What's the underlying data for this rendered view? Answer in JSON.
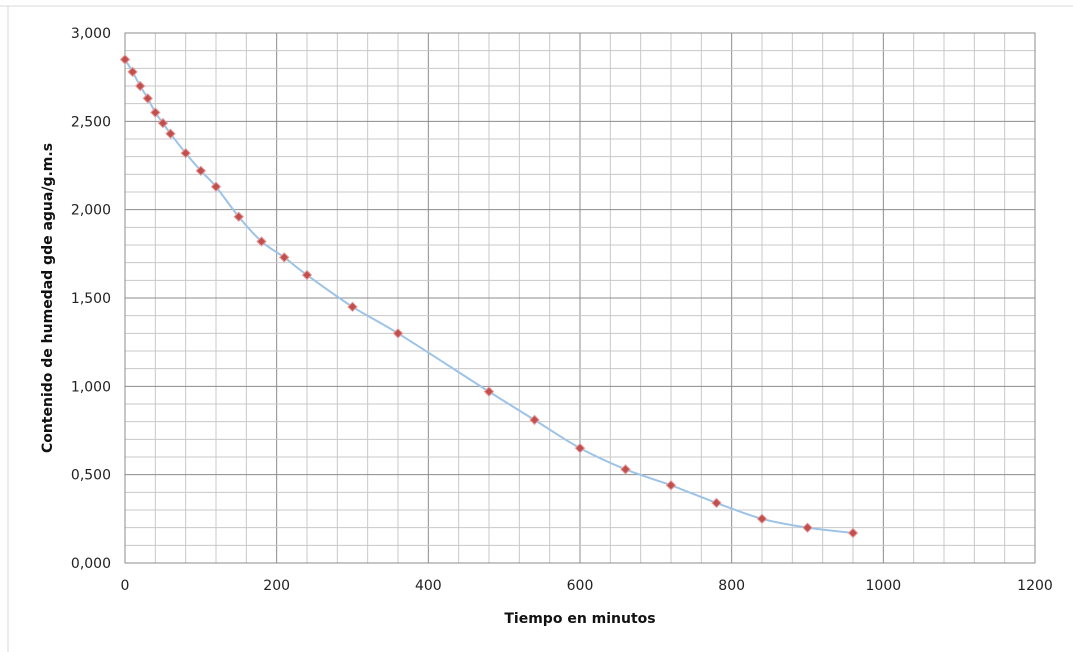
{
  "chart_data": {
    "type": "scatter",
    "title": "",
    "xlabel": "Tiempo en minutos",
    "ylabel": "Contenido de humedad gde agua/g.m.s",
    "xlim": [
      0,
      1200
    ],
    "ylim": [
      0,
      3
    ],
    "x_ticks": [
      0,
      200,
      400,
      600,
      800,
      1000,
      1200
    ],
    "x_tick_labels": [
      "0",
      "200",
      "400",
      "600",
      "800",
      "1000",
      "1200"
    ],
    "y_ticks": [
      0,
      0.5,
      1,
      1.5,
      2,
      2.5,
      3
    ],
    "y_tick_labels": [
      "0,000",
      "0,500",
      "1,000",
      "1,500",
      "2,000",
      "2,500",
      "3,000"
    ],
    "grid": true,
    "series": [
      {
        "style": "smooth line with diamond markers",
        "line_color": "#9dc3e6",
        "marker_color": "#c0504d",
        "points": [
          {
            "x": 0,
            "y": 2.85
          },
          {
            "x": 10,
            "y": 2.78
          },
          {
            "x": 20,
            "y": 2.7
          },
          {
            "x": 30,
            "y": 2.63
          },
          {
            "x": 40,
            "y": 2.55
          },
          {
            "x": 50,
            "y": 2.49
          },
          {
            "x": 60,
            "y": 2.43
          },
          {
            "x": 80,
            "y": 2.32
          },
          {
            "x": 100,
            "y": 2.22
          },
          {
            "x": 120,
            "y": 2.13
          },
          {
            "x": 150,
            "y": 1.96
          },
          {
            "x": 180,
            "y": 1.82
          },
          {
            "x": 210,
            "y": 1.73
          },
          {
            "x": 240,
            "y": 1.63
          },
          {
            "x": 300,
            "y": 1.45
          },
          {
            "x": 360,
            "y": 1.3
          },
          {
            "x": 480,
            "y": 0.97
          },
          {
            "x": 540,
            "y": 0.81
          },
          {
            "x": 600,
            "y": 0.65
          },
          {
            "x": 660,
            "y": 0.53
          },
          {
            "x": 720,
            "y": 0.44
          },
          {
            "x": 780,
            "y": 0.34
          },
          {
            "x": 840,
            "y": 0.25
          },
          {
            "x": 900,
            "y": 0.2
          },
          {
            "x": 960,
            "y": 0.17
          }
        ]
      }
    ]
  }
}
